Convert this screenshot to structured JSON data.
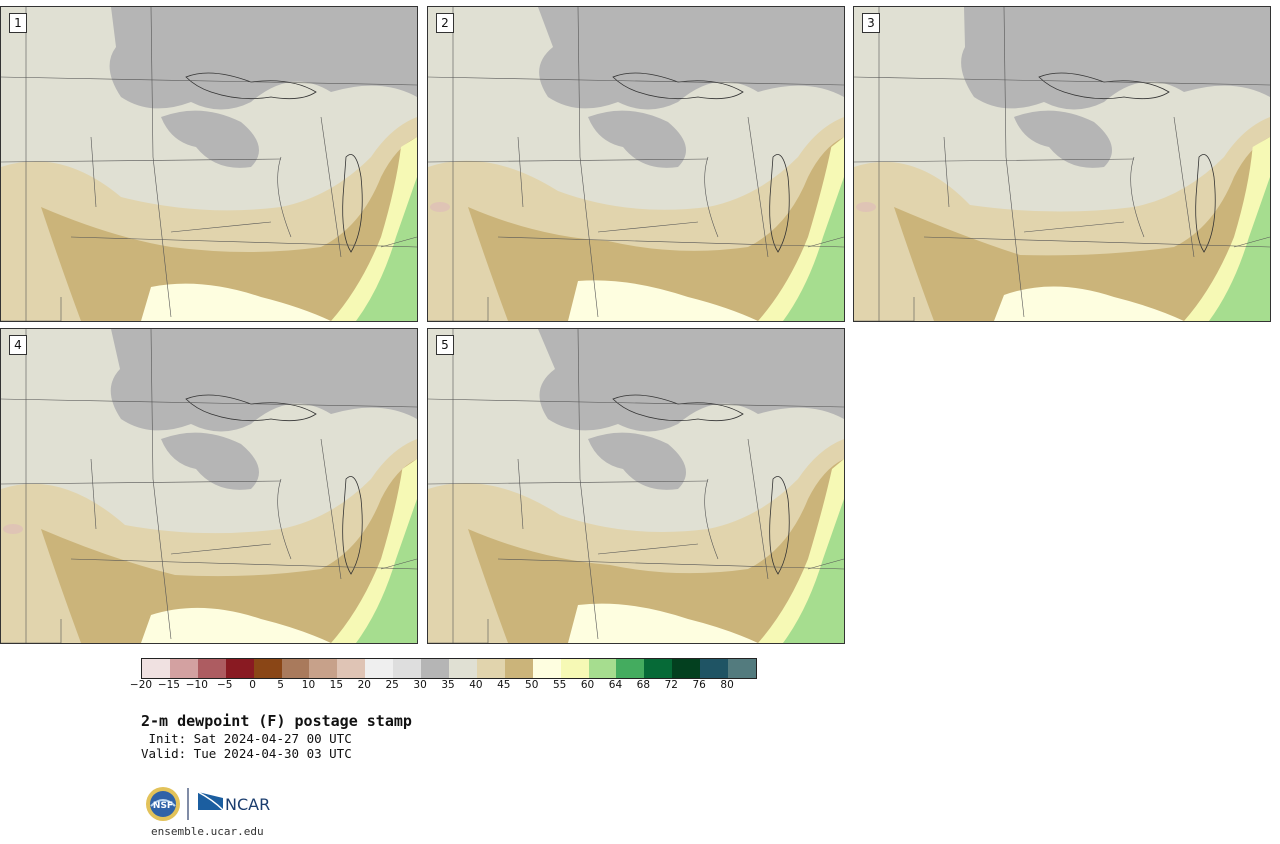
{
  "figure": {
    "title": "2-m dewpoint (F) postage stamp",
    "init": " Init: Sat 2024-04-27 00 UTC",
    "valid": "Valid: Tue 2024-04-30 03 UTC",
    "website": "ensemble.ucar.edu",
    "logos": {
      "nsf": "NSF",
      "ncar": "NCAR"
    }
  },
  "panels": [
    {
      "label": "1",
      "variant": 0
    },
    {
      "label": "2",
      "variant": 1
    },
    {
      "label": "3",
      "variant": 2
    },
    {
      "label": "4",
      "variant": 3
    },
    {
      "label": "5",
      "variant": 4
    }
  ],
  "colorbar": {
    "ticks": [
      "-20",
      "-15",
      "-10",
      "-5",
      "0",
      "5",
      "10",
      "15",
      "20",
      "25",
      "30",
      "35",
      "40",
      "45",
      "50",
      "55",
      "60",
      "64",
      "68",
      "72",
      "76",
      "80"
    ],
    "colors": [
      "#f0e1e1",
      "#d3a1a1",
      "#ad5c61",
      "#891a22",
      "#8a4616",
      "#a97a5c",
      "#c7a18a",
      "#dfc4b5",
      "#efefef",
      "#dedede",
      "#b5b5b5",
      "#e0e0d3",
      "#e1d4ad",
      "#cbb47a",
      "#fefee0",
      "#f6f9b5",
      "#a6dd8f",
      "#44ac5f",
      "#066a37",
      "#03401f",
      "#1f5464",
      "#537b7e"
    ]
  },
  "map_colors": {
    "dry_gray": "#b5b5b5",
    "light_gray": "#dedede",
    "neutral": "#e0e0d3",
    "tan_light": "#e1d4ad",
    "tan_dark": "#cbb47a",
    "pale_yellow": "#fefee0",
    "yellow": "#f6f9b5",
    "green": "#a6dd8f",
    "pink": "#dfc4b5"
  }
}
